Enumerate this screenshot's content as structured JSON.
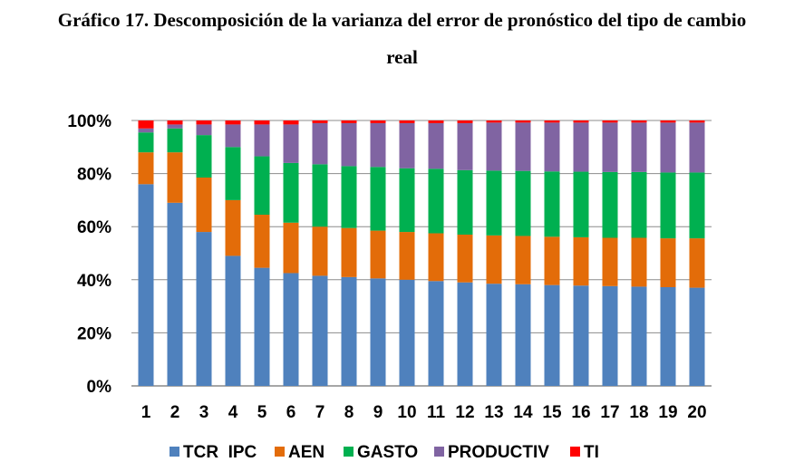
{
  "title_line1": "Gráfico 17. Descomposición de la varianza del error de pronóstico del tipo de cambio",
  "title_line2": "real",
  "chart_data": {
    "type": "bar",
    "stacked": "percent",
    "categories": [
      "1",
      "2",
      "3",
      "4",
      "5",
      "6",
      "7",
      "8",
      "9",
      "10",
      "11",
      "12",
      "13",
      "14",
      "15",
      "16",
      "17",
      "18",
      "19",
      "20"
    ],
    "y_ticks": [
      "0%",
      "20%",
      "40%",
      "60%",
      "80%",
      "100%"
    ],
    "ylim": [
      0,
      100
    ],
    "grid": true,
    "legend_position": "bottom",
    "series": [
      {
        "name": "TCR  IPC",
        "color": "#4F81BD",
        "values": [
          76,
          69,
          58,
          49,
          44.5,
          42.5,
          41.5,
          41,
          40.5,
          40,
          39.5,
          39,
          38.5,
          38.3,
          38,
          37.8,
          37.6,
          37.4,
          37.2,
          37
        ]
      },
      {
        "name": "AEN",
        "color": "#E36C09",
        "values": [
          12,
          19,
          20.5,
          21,
          20,
          19,
          18.5,
          18.5,
          18,
          18,
          18,
          18,
          18.2,
          18.2,
          18.2,
          18.2,
          18.2,
          18.4,
          18.4,
          18.6
        ]
      },
      {
        "name": "GASTO",
        "color": "#00B050",
        "values": [
          7.5,
          9,
          16,
          20,
          22,
          22.5,
          23.5,
          23.3,
          24,
          24,
          24.3,
          24.3,
          24.4,
          24.5,
          24.6,
          24.7,
          24.8,
          24.8,
          24.8,
          24.8
        ]
      },
      {
        "name": "PRODUCTIV",
        "color": "#8064A2",
        "values": [
          1.5,
          1.5,
          4,
          8.5,
          12,
          14.5,
          15.5,
          16.2,
          16.5,
          17,
          17.2,
          17.7,
          18.1,
          18.2,
          18.4,
          18.5,
          18.6,
          18.6,
          18.8,
          18.8
        ]
      },
      {
        "name": "TI",
        "color": "#FF0000",
        "values": [
          3,
          1.5,
          1.5,
          1.5,
          1.5,
          1.5,
          1,
          1,
          1,
          1,
          1,
          1,
          0.8,
          0.8,
          0.8,
          0.8,
          0.8,
          0.8,
          0.8,
          0.8
        ]
      }
    ]
  }
}
